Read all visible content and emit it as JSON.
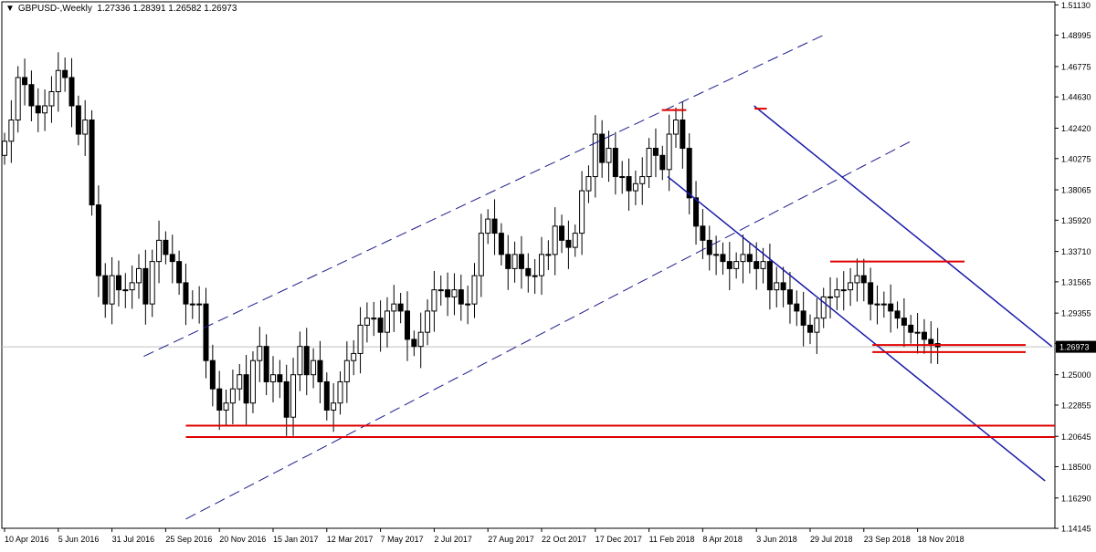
{
  "chart_data": {
    "type": "candlestick",
    "symbol": "GBPUSD-",
    "timeframe": "Weekly",
    "header_ohlc": [
      "1.27336",
      "1.28391",
      "1.26582",
      "1.26973"
    ],
    "current_price": 1.26973,
    "current_price_label": "1.26973",
    "y_axis": {
      "range": [
        1.1415,
        1.5135
      ],
      "ticks": [
        "1.51130",
        "1.48995",
        "1.46775",
        "1.44630",
        "1.42420",
        "1.40275",
        "1.38065",
        "1.35920",
        "1.33710",
        "1.31565",
        "1.29355",
        "1.27210",
        "1.25000",
        "1.22855",
        "1.20645",
        "1.18500",
        "1.16290",
        "1.14145"
      ]
    },
    "x_axis": {
      "ticks": [
        {
          "label": "10 Apr 2016",
          "idx": 0
        },
        {
          "label": "5 Jun 2016",
          "idx": 8
        },
        {
          "label": "31 Jul 2016",
          "idx": 16
        },
        {
          "label": "25 Sep 2016",
          "idx": 24
        },
        {
          "label": "20 Nov 2016",
          "idx": 32
        },
        {
          "label": "15 Jan 2017",
          "idx": 40
        },
        {
          "label": "12 Mar 2017",
          "idx": 48
        },
        {
          "label": "7 May 2017",
          "idx": 56
        },
        {
          "label": "2 Jul 2017",
          "idx": 64
        },
        {
          "label": "27 Aug 2017",
          "idx": 72
        },
        {
          "label": "22 Oct 2017",
          "idx": 80
        },
        {
          "label": "17 Dec 2017",
          "idx": 88
        },
        {
          "label": "11 Feb 2018",
          "idx": 96
        },
        {
          "label": "8 Apr 2018",
          "idx": 104
        },
        {
          "label": "3 Jun 2018",
          "idx": 112
        },
        {
          "label": "29 Jul 2018",
          "idx": 120
        },
        {
          "label": "23 Sep 2018",
          "idx": 128
        },
        {
          "label": "18 Nov 2018",
          "idx": 136
        }
      ]
    },
    "candles_close": [
      1.415,
      1.43,
      1.46,
      1.455,
      1.44,
      1.435,
      1.44,
      1.45,
      1.465,
      1.46,
      1.44,
      1.42,
      1.43,
      1.37,
      1.32,
      1.3,
      1.32,
      1.31,
      1.31,
      1.315,
      1.325,
      1.3,
      1.33,
      1.345,
      1.335,
      1.33,
      1.315,
      1.3,
      1.3,
      1.3,
      1.26,
      1.24,
      1.225,
      1.23,
      1.24,
      1.25,
      1.23,
      1.26,
      1.27,
      1.245,
      1.25,
      1.245,
      1.22,
      1.25,
      1.27,
      1.25,
      1.26,
      1.245,
      1.225,
      1.23,
      1.245,
      1.26,
      1.265,
      1.285,
      1.29,
      1.29,
      1.28,
      1.295,
      1.3,
      1.295,
      1.275,
      1.27,
      1.28,
      1.295,
      1.31,
      1.31,
      1.305,
      1.31,
      1.3,
      1.3,
      1.32,
      1.35,
      1.36,
      1.35,
      1.335,
      1.325,
      1.335,
      1.325,
      1.32,
      1.32,
      1.335,
      1.335,
      1.355,
      1.345,
      1.34,
      1.35,
      1.38,
      1.39,
      1.42,
      1.4,
      1.41,
      1.39,
      1.39,
      1.38,
      1.385,
      1.39,
      1.41,
      1.405,
      1.395,
      1.42,
      1.43,
      1.41,
      1.375,
      1.355,
      1.345,
      1.335,
      1.335,
      1.33,
      1.325,
      1.33,
      1.335,
      1.33,
      1.325,
      1.33,
      1.31,
      1.315,
      1.31,
      1.3,
      1.295,
      1.285,
      1.28,
      1.29,
      1.305,
      1.305,
      1.31,
      1.31,
      1.315,
      1.32,
      1.315,
      1.3,
      1.3,
      1.3,
      1.295,
      1.29,
      1.285,
      1.28,
      1.28,
      1.275,
      1.272,
      1.2697
    ],
    "channels": [
      {
        "name": "ascending-channel",
        "color": "#1a1a8c",
        "style": "dashed"
      },
      {
        "name": "descending-channel",
        "color": "#1a1aa8",
        "style": "solid"
      }
    ],
    "levels_color": "#e00000",
    "candle_bull_color": "#ffffff",
    "candle_bear_color": "#000000",
    "grid": false
  }
}
